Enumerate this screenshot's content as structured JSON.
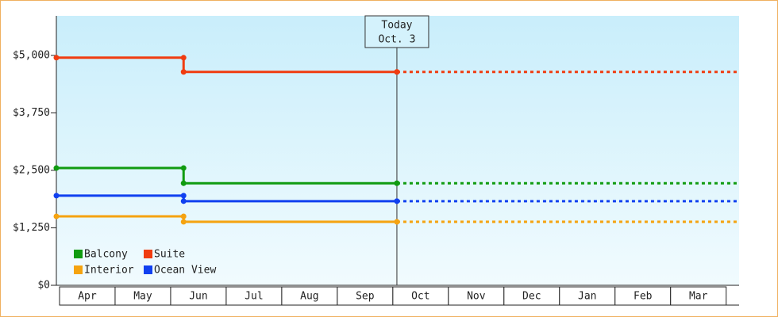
{
  "chart_data": {
    "type": "step-line",
    "categories": [
      "Apr",
      "May",
      "Jun",
      "Jul",
      "Aug",
      "Sep",
      "Oct",
      "Nov",
      "Dec",
      "Jan",
      "Feb",
      "Mar"
    ],
    "x": [
      0,
      2.29,
      6.13
    ],
    "xlim": [
      0,
      12.29
    ],
    "ylim": [
      0,
      5860
    ],
    "yticks": [
      {
        "value": 0,
        "label": "$0"
      },
      {
        "value": 1250,
        "label": "$1,250"
      },
      {
        "value": 2500,
        "label": "$2,500"
      },
      {
        "value": 3750,
        "label": "$3,750"
      },
      {
        "value": 5000,
        "label": "$5,000"
      }
    ],
    "today": {
      "x": 6.13,
      "label": [
        "Today",
        "Oct. 3"
      ]
    },
    "series": [
      {
        "name": "Balcony",
        "color": "#109b10",
        "values": [
          2550,
          2220,
          2220
        ]
      },
      {
        "name": "Suite",
        "color": "#f03c10",
        "values": [
          4950,
          4640,
          4640
        ]
      },
      {
        "name": "Interior",
        "color": "#f5a310",
        "values": [
          1500,
          1380,
          1380
        ]
      },
      {
        "name": "Ocean View",
        "color": "#1040f0",
        "values": [
          1950,
          1830,
          1830
        ]
      }
    ]
  }
}
